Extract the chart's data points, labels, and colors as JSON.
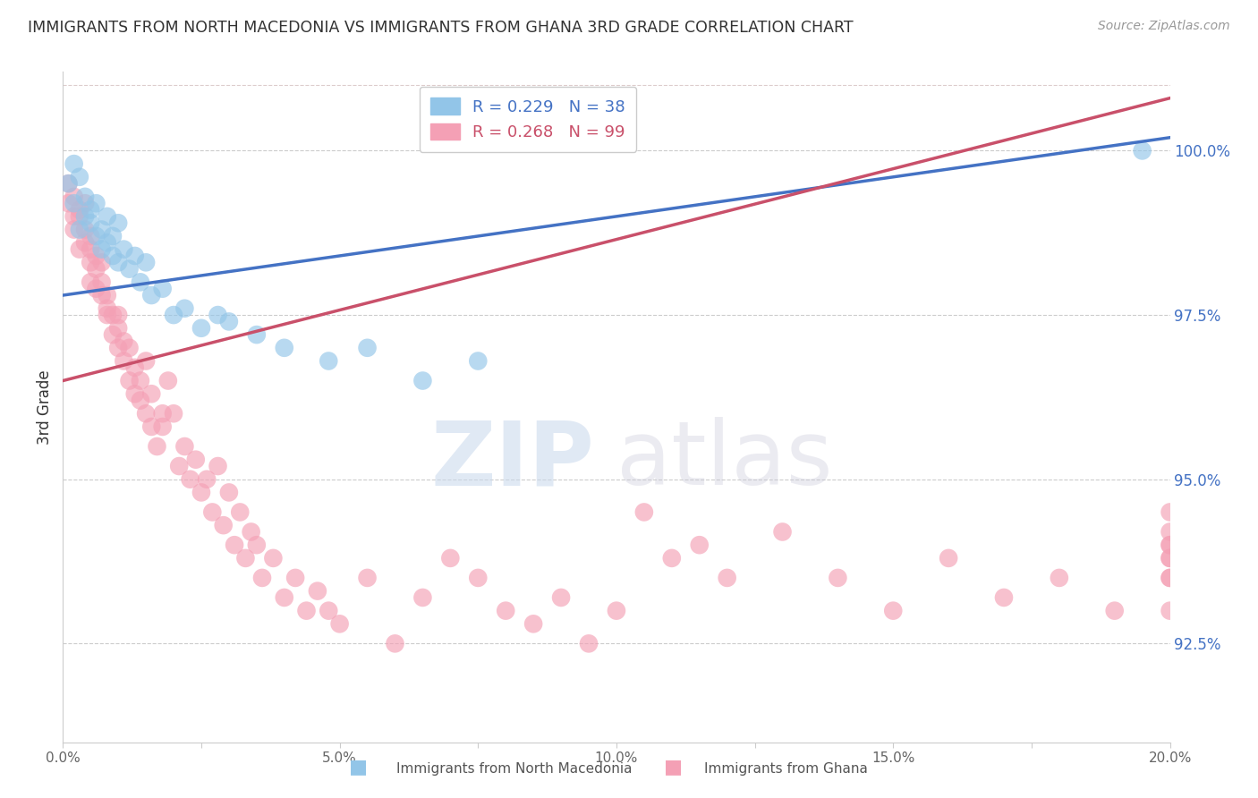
{
  "title": "IMMIGRANTS FROM NORTH MACEDONIA VS IMMIGRANTS FROM GHANA 3RD GRADE CORRELATION CHART",
  "source": "Source: ZipAtlas.com",
  "ylabel": "3rd Grade",
  "xlim": [
    0.0,
    0.2
  ],
  "ylim": [
    91.0,
    101.2
  ],
  "xtick_labels": [
    "0.0%",
    "",
    "5.0%",
    "",
    "10.0%",
    "",
    "15.0%",
    "",
    "20.0%"
  ],
  "xtick_vals": [
    0.0,
    0.025,
    0.05,
    0.075,
    0.1,
    0.125,
    0.15,
    0.175,
    0.2
  ],
  "ytick_labels": [
    "92.5%",
    "95.0%",
    "97.5%",
    "100.0%"
  ],
  "ytick_vals": [
    92.5,
    95.0,
    97.5,
    100.0
  ],
  "blue_color": "#92C5E8",
  "pink_color": "#F4A0B5",
  "blue_line_color": "#4472C4",
  "pink_line_color": "#C9506A",
  "legend_r_blue": "R = 0.229",
  "legend_n_blue": "N = 38",
  "legend_r_pink": "R = 0.268",
  "legend_n_pink": "N = 99",
  "watermark_zip": "ZIP",
  "watermark_atlas": "atlas",
  "blue_scatter_x": [
    0.001,
    0.002,
    0.002,
    0.003,
    0.003,
    0.004,
    0.004,
    0.005,
    0.005,
    0.006,
    0.006,
    0.007,
    0.007,
    0.008,
    0.008,
    0.009,
    0.009,
    0.01,
    0.01,
    0.011,
    0.012,
    0.013,
    0.014,
    0.015,
    0.016,
    0.018,
    0.02,
    0.022,
    0.025,
    0.028,
    0.03,
    0.035,
    0.04,
    0.048,
    0.055,
    0.065,
    0.075,
    0.195
  ],
  "blue_scatter_y": [
    99.5,
    99.8,
    99.2,
    99.6,
    98.8,
    99.3,
    99.0,
    98.9,
    99.1,
    98.7,
    99.2,
    98.5,
    98.8,
    98.6,
    99.0,
    98.4,
    98.7,
    98.3,
    98.9,
    98.5,
    98.2,
    98.4,
    98.0,
    98.3,
    97.8,
    97.9,
    97.5,
    97.6,
    97.3,
    97.5,
    97.4,
    97.2,
    97.0,
    96.8,
    97.0,
    96.5,
    96.8,
    100.0
  ],
  "pink_scatter_x": [
    0.001,
    0.001,
    0.002,
    0.002,
    0.002,
    0.003,
    0.003,
    0.003,
    0.004,
    0.004,
    0.004,
    0.005,
    0.005,
    0.005,
    0.005,
    0.006,
    0.006,
    0.006,
    0.007,
    0.007,
    0.007,
    0.008,
    0.008,
    0.008,
    0.009,
    0.009,
    0.01,
    0.01,
    0.01,
    0.011,
    0.011,
    0.012,
    0.012,
    0.013,
    0.013,
    0.014,
    0.014,
    0.015,
    0.015,
    0.016,
    0.016,
    0.017,
    0.018,
    0.018,
    0.019,
    0.02,
    0.021,
    0.022,
    0.023,
    0.024,
    0.025,
    0.026,
    0.027,
    0.028,
    0.029,
    0.03,
    0.031,
    0.032,
    0.033,
    0.034,
    0.035,
    0.036,
    0.038,
    0.04,
    0.042,
    0.044,
    0.046,
    0.048,
    0.05,
    0.055,
    0.06,
    0.065,
    0.07,
    0.075,
    0.08,
    0.085,
    0.09,
    0.095,
    0.1,
    0.105,
    0.11,
    0.115,
    0.12,
    0.13,
    0.14,
    0.15,
    0.16,
    0.17,
    0.18,
    0.19,
    0.2,
    0.2,
    0.2,
    0.2,
    0.2,
    0.2,
    0.2,
    0.2,
    0.2
  ],
  "pink_scatter_y": [
    99.2,
    99.5,
    99.0,
    99.3,
    98.8,
    99.1,
    98.5,
    99.0,
    98.6,
    98.8,
    99.2,
    98.3,
    98.5,
    98.7,
    98.0,
    98.2,
    98.4,
    97.9,
    97.8,
    98.0,
    98.3,
    97.6,
    97.8,
    97.5,
    97.2,
    97.5,
    97.0,
    97.3,
    97.5,
    96.8,
    97.1,
    96.5,
    97.0,
    96.3,
    96.7,
    96.5,
    96.2,
    96.8,
    96.0,
    95.8,
    96.3,
    95.5,
    95.8,
    96.0,
    96.5,
    96.0,
    95.2,
    95.5,
    95.0,
    95.3,
    94.8,
    95.0,
    94.5,
    95.2,
    94.3,
    94.8,
    94.0,
    94.5,
    93.8,
    94.2,
    94.0,
    93.5,
    93.8,
    93.2,
    93.5,
    93.0,
    93.3,
    93.0,
    92.8,
    93.5,
    92.5,
    93.2,
    93.8,
    93.5,
    93.0,
    92.8,
    93.2,
    92.5,
    93.0,
    94.5,
    93.8,
    94.0,
    93.5,
    94.2,
    93.5,
    93.0,
    93.8,
    93.2,
    93.5,
    93.0,
    93.8,
    94.0,
    93.5,
    94.2,
    93.8,
    94.5,
    94.0,
    93.5,
    93.0
  ]
}
